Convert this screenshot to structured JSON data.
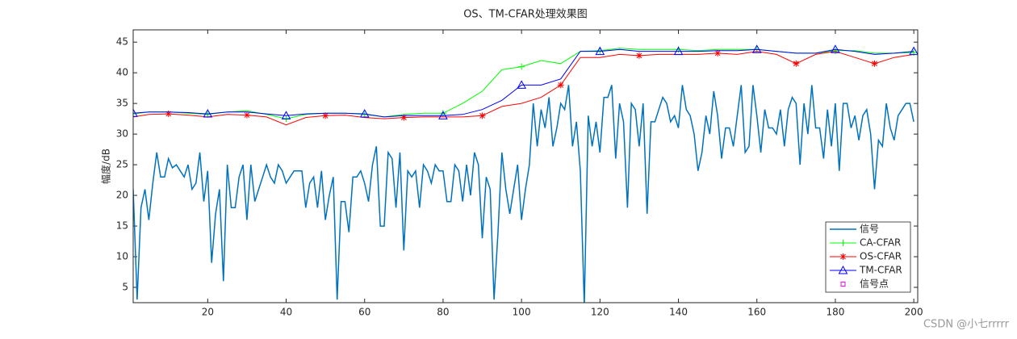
{
  "chart_data": {
    "type": "line",
    "title": "OS、TM-CFAR处理效果图",
    "y_label": "幅度/dB",
    "xlim": [
      1,
      201
    ],
    "ylim": [
      2.5,
      47
    ],
    "xticks": [
      20,
      40,
      60,
      80,
      100,
      120,
      140,
      160,
      180,
      200
    ],
    "yticks": [
      5,
      10,
      15,
      20,
      25,
      30,
      35,
      40,
      45
    ],
    "legend": "lower right",
    "series": [
      {
        "name": "信号",
        "color": "#0072bd",
        "marker": "none",
        "x": [
          1,
          2,
          3,
          4,
          5,
          6,
          7,
          8,
          9,
          10,
          11,
          12,
          13,
          14,
          15,
          16,
          17,
          18,
          19,
          20,
          21,
          22,
          23,
          24,
          25,
          26,
          27,
          28,
          29,
          30,
          31,
          32,
          33,
          34,
          35,
          36,
          37,
          38,
          39,
          40,
          41,
          42,
          43,
          44,
          45,
          46,
          47,
          48,
          49,
          50,
          51,
          52,
          53,
          54,
          55,
          56,
          57,
          58,
          59,
          60,
          61,
          62,
          63,
          64,
          65,
          66,
          67,
          68,
          69,
          70,
          71,
          72,
          73,
          74,
          75,
          76,
          77,
          78,
          79,
          80,
          81,
          82,
          83,
          84,
          85,
          86,
          87,
          88,
          89,
          90,
          91,
          92,
          93,
          94,
          95,
          96,
          97,
          98,
          99,
          100,
          101,
          102,
          103,
          104,
          105,
          106,
          107,
          108,
          109,
          110,
          111,
          112,
          113,
          114,
          115,
          116,
          117,
          118,
          119,
          120,
          121,
          122,
          123,
          124,
          125,
          126,
          127,
          128,
          129,
          130,
          131,
          132,
          133,
          134,
          135,
          136,
          137,
          138,
          139,
          140,
          141,
          142,
          143,
          144,
          145,
          146,
          147,
          148,
          149,
          150,
          151,
          152,
          153,
          154,
          155,
          156,
          157,
          158,
          159,
          160,
          161,
          162,
          163,
          164,
          165,
          166,
          167,
          168,
          169,
          170,
          171,
          172,
          173,
          174,
          175,
          176,
          177,
          178,
          179,
          180,
          181,
          182,
          183,
          184,
          185,
          186,
          187,
          188,
          189,
          190,
          191,
          192,
          193,
          194,
          195,
          196,
          197,
          198,
          199,
          200
        ],
        "values": [
          21,
          3,
          18,
          21,
          16,
          22,
          27,
          23,
          23,
          26,
          24.5,
          25,
          24,
          23,
          25,
          21,
          22,
          27,
          19,
          24,
          9,
          17,
          21,
          6,
          25,
          18,
          18,
          23,
          25,
          16,
          25,
          19,
          21,
          23,
          25,
          23,
          22,
          25,
          24,
          22,
          23,
          24,
          24,
          24,
          18,
          22,
          23,
          18,
          24,
          16,
          20,
          23,
          3,
          19,
          19,
          14,
          23,
          23,
          24,
          22,
          19,
          25,
          28,
          15,
          15,
          27,
          26,
          18,
          27,
          11,
          24,
          23,
          24,
          18,
          25,
          24,
          22,
          25,
          24,
          24,
          19,
          19,
          25,
          24,
          19,
          25,
          20,
          27,
          25,
          13,
          23,
          21,
          3,
          14,
          27,
          21,
          17,
          21,
          25,
          16,
          21,
          25,
          35,
          28,
          34,
          31,
          36,
          28,
          31,
          35,
          34,
          38,
          28,
          32,
          24,
          2,
          33,
          28,
          32,
          27,
          36,
          36,
          38,
          26,
          35,
          32,
          18,
          35,
          34,
          28,
          35,
          17,
          32,
          32,
          34,
          36,
          35,
          32,
          33,
          31,
          38,
          34,
          33,
          30,
          24,
          27,
          33,
          30,
          37,
          33,
          26,
          31,
          31,
          28,
          33,
          38,
          27,
          28,
          38,
          33,
          27,
          34,
          31,
          31,
          30,
          34,
          28,
          34,
          36,
          35,
          25,
          35,
          30,
          38,
          31,
          31,
          26,
          34,
          28,
          35,
          24,
          35,
          35,
          31,
          33,
          29,
          33,
          34,
          30,
          21,
          29,
          28,
          35,
          31,
          29,
          33,
          34,
          35,
          35,
          32
        ]
      },
      {
        "name": "CA-CFAR",
        "color": "#00ff00",
        "marker": "+",
        "x": [
          1,
          5,
          10,
          15,
          20,
          25,
          30,
          35,
          40,
          45,
          50,
          55,
          60,
          65,
          70,
          75,
          80,
          85,
          90,
          95,
          100,
          105,
          110,
          115,
          120,
          125,
          130,
          135,
          140,
          145,
          150,
          155,
          160,
          165,
          170,
          175,
          180,
          185,
          190,
          195,
          200
        ],
        "values": [
          33.3,
          33.6,
          33.6,
          33.4,
          33.2,
          33.6,
          33.8,
          33.2,
          32.5,
          33.2,
          33.4,
          33.4,
          33.2,
          32.8,
          33.2,
          33.4,
          33.4,
          35,
          37,
          40.5,
          41,
          42,
          41.5,
          43.5,
          43.6,
          44,
          43.8,
          43.8,
          43.8,
          43.6,
          43.8,
          43.8,
          43.8,
          43.5,
          43.2,
          43.2,
          43.6,
          43.6,
          43.2,
          43.2,
          43.3
        ]
      },
      {
        "name": "OS-CFAR",
        "color": "#ff0000",
        "marker": "*",
        "x": [
          1,
          5,
          10,
          15,
          20,
          25,
          30,
          35,
          40,
          45,
          50,
          55,
          60,
          65,
          70,
          75,
          80,
          85,
          90,
          95,
          100,
          105,
          110,
          115,
          120,
          125,
          130,
          135,
          140,
          145,
          150,
          155,
          160,
          165,
          170,
          175,
          180,
          185,
          190,
          195,
          200
        ],
        "values": [
          32.8,
          33.2,
          33.3,
          33.1,
          32.8,
          33.2,
          33.1,
          32.8,
          31.5,
          32.7,
          33,
          33.1,
          32.7,
          32.5,
          32.7,
          32.8,
          32.8,
          32.8,
          33,
          34.5,
          35,
          36,
          38,
          42.5,
          42.5,
          43,
          42.8,
          43,
          43,
          43,
          43.2,
          43,
          43.5,
          43,
          41.5,
          43,
          43.5,
          42.5,
          41.5,
          42.5,
          43
        ]
      },
      {
        "name": "TM-CFAR",
        "color": "#0000ff",
        "marker": "^",
        "x": [
          1,
          5,
          10,
          15,
          20,
          25,
          30,
          35,
          40,
          45,
          50,
          55,
          60,
          65,
          70,
          75,
          80,
          85,
          90,
          95,
          100,
          105,
          110,
          115,
          120,
          125,
          130,
          135,
          140,
          145,
          150,
          155,
          160,
          165,
          170,
          175,
          180,
          185,
          190,
          195,
          200
        ],
        "values": [
          33.4,
          33.6,
          33.6,
          33.5,
          33.3,
          33.6,
          33.6,
          33.3,
          33,
          33.3,
          33.4,
          33.4,
          33.3,
          32.8,
          33,
          33,
          33,
          33.2,
          34,
          35.5,
          38,
          38,
          39,
          43.5,
          43.5,
          43.8,
          43.5,
          43.5,
          43.5,
          43.5,
          43.6,
          43.6,
          43.8,
          43.5,
          43.2,
          43.2,
          43.8,
          43.5,
          43,
          43.2,
          43.5
        ]
      },
      {
        "name": "信号点",
        "color": "#ff00ff",
        "marker": "s",
        "x": [],
        "values": []
      }
    ],
    "watermark": "CSDN @小七rrrrr"
  }
}
